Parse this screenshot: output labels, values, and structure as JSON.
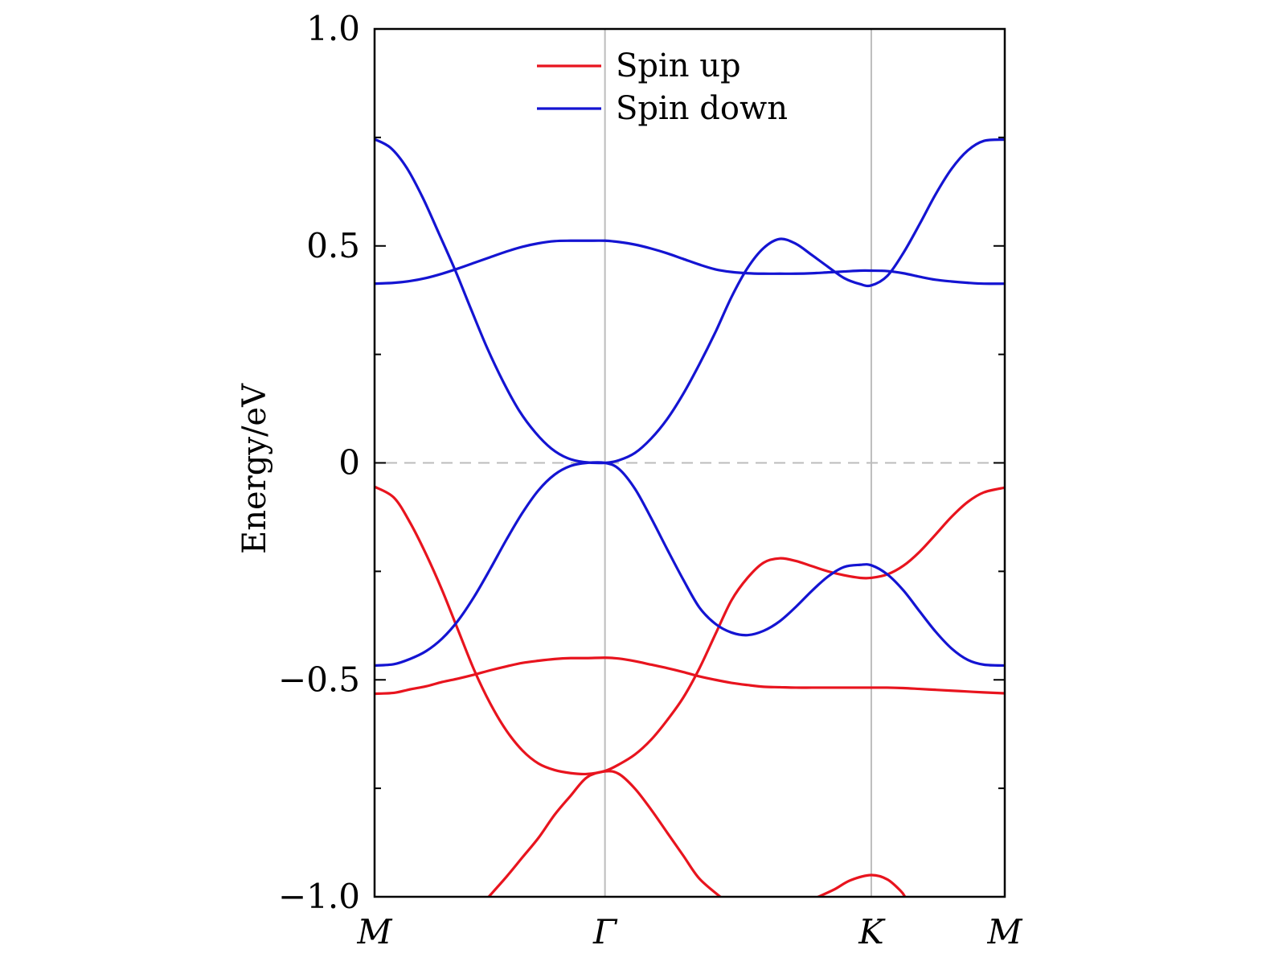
{
  "chart_data": {
    "type": "line",
    "title": "",
    "xlabel": "",
    "ylabel": "Energy/eV",
    "ylim": [
      -1.0,
      1.0
    ],
    "xlim": [
      0,
      1
    ],
    "y_ticks": [
      {
        "value": 1.0,
        "label": "1.0"
      },
      {
        "value": 0.5,
        "label": "0.5"
      },
      {
        "value": 0,
        "label": "0"
      },
      {
        "value": -0.5,
        "label": "−0.5"
      },
      {
        "value": -1.0,
        "label": "−1.0"
      }
    ],
    "y_minor_ticks": [
      0.75,
      0.25,
      -0.25,
      -0.75
    ],
    "k_points": [
      {
        "label": "M",
        "x": 0
      },
      {
        "label": "Γ",
        "x": 0.3656
      },
      {
        "label": "K",
        "x": 0.7882
      },
      {
        "label": "M",
        "x": 1
      }
    ],
    "fermi_level": 0,
    "grid": false,
    "legend": {
      "position": "top-center"
    },
    "colors": {
      "spin_up": "#e8141e",
      "spin_down": "#1414d2",
      "vlines": "#bcbcbc",
      "fermi": "#bcbcbc"
    },
    "series": [
      {
        "name": "Spin up",
        "color": "#e8141e",
        "bands": [
          [
            [
              0,
              -0.055
            ],
            [
              0.0306,
              -0.08
            ],
            [
              0.0561,
              -0.137
            ],
            [
              0.0816,
              -0.21
            ],
            [
              0.1071,
              -0.293
            ],
            [
              0.1327,
              -0.386
            ],
            [
              0.1582,
              -0.478
            ],
            [
              0.1837,
              -0.555
            ],
            [
              0.2092,
              -0.617
            ],
            [
              0.2347,
              -0.663
            ],
            [
              0.2602,
              -0.693
            ],
            [
              0.2857,
              -0.708
            ],
            [
              0.3112,
              -0.715
            ],
            [
              0.3367,
              -0.717
            ],
            [
              0.3656,
              -0.71
            ],
            [
              0.3878,
              -0.695
            ],
            [
              0.4133,
              -0.672
            ],
            [
              0.4388,
              -0.638
            ],
            [
              0.4643,
              -0.593
            ],
            [
              0.4898,
              -0.541
            ],
            [
              0.5153,
              -0.474
            ],
            [
              0.5408,
              -0.395
            ],
            [
              0.5663,
              -0.317
            ],
            [
              0.5918,
              -0.265
            ],
            [
              0.6173,
              -0.23
            ],
            [
              0.6429,
              -0.22
            ],
            [
              0.6684,
              -0.226
            ],
            [
              0.6939,
              -0.238
            ],
            [
              0.7194,
              -0.25
            ],
            [
              0.7449,
              -0.259
            ],
            [
              0.7704,
              -0.265
            ],
            [
              0.7882,
              -0.265
            ],
            [
              0.8137,
              -0.257
            ],
            [
              0.8392,
              -0.237
            ],
            [
              0.8648,
              -0.205
            ],
            [
              0.8903,
              -0.165
            ],
            [
              0.9158,
              -0.124
            ],
            [
              0.9413,
              -0.09
            ],
            [
              0.9668,
              -0.068
            ],
            [
              1.0,
              -0.057
            ]
          ],
          [
            [
              0,
              -0.532
            ],
            [
              0.0306,
              -0.53
            ],
            [
              0.0561,
              -0.522
            ],
            [
              0.0816,
              -0.515
            ],
            [
              0.1071,
              -0.505
            ],
            [
              0.1327,
              -0.497
            ],
            [
              0.1582,
              -0.488
            ],
            [
              0.1837,
              -0.478
            ],
            [
              0.2092,
              -0.469
            ],
            [
              0.2347,
              -0.461
            ],
            [
              0.2602,
              -0.456
            ],
            [
              0.2857,
              -0.452
            ],
            [
              0.3112,
              -0.45
            ],
            [
              0.3367,
              -0.45
            ],
            [
              0.3656,
              -0.449
            ],
            [
              0.3878,
              -0.451
            ],
            [
              0.4133,
              -0.457
            ],
            [
              0.4388,
              -0.465
            ],
            [
              0.4643,
              -0.473
            ],
            [
              0.4898,
              -0.482
            ],
            [
              0.5153,
              -0.492
            ],
            [
              0.5408,
              -0.5
            ],
            [
              0.5663,
              -0.507
            ],
            [
              0.5918,
              -0.512
            ],
            [
              0.6173,
              -0.516
            ],
            [
              0.6429,
              -0.517
            ],
            [
              0.6684,
              -0.518
            ],
            [
              0.6939,
              -0.518
            ],
            [
              0.7194,
              -0.518
            ],
            [
              0.7449,
              -0.518
            ],
            [
              0.7704,
              -0.518
            ],
            [
              0.7882,
              -0.518
            ],
            [
              0.8137,
              -0.518
            ],
            [
              0.8392,
              -0.519
            ],
            [
              0.8648,
              -0.521
            ],
            [
              0.8903,
              -0.523
            ],
            [
              0.9158,
              -0.525
            ],
            [
              0.9413,
              -0.527
            ],
            [
              0.9668,
              -0.529
            ],
            [
              1.0,
              -0.531
            ]
          ],
          [
            [
              0.1811,
              -1.0
            ],
            [
              0.2092,
              -0.954
            ],
            [
              0.2347,
              -0.909
            ],
            [
              0.2602,
              -0.864
            ],
            [
              0.2857,
              -0.811
            ],
            [
              0.3112,
              -0.767
            ],
            [
              0.3367,
              -0.725
            ],
            [
              0.3656,
              -0.711
            ],
            [
              0.3878,
              -0.717
            ],
            [
              0.4133,
              -0.751
            ],
            [
              0.4388,
              -0.799
            ],
            [
              0.4643,
              -0.852
            ],
            [
              0.4898,
              -0.905
            ],
            [
              0.5153,
              -0.958
            ],
            [
              0.5485,
              -1.0
            ]
          ],
          [
            [
              0.7041,
              -1.0
            ],
            [
              0.7296,
              -0.983
            ],
            [
              0.7551,
              -0.962
            ],
            [
              0.7882,
              -0.95
            ],
            [
              0.8137,
              -0.96
            ],
            [
              0.8352,
              -0.987
            ],
            [
              0.8416,
              -1.0
            ]
          ]
        ]
      },
      {
        "name": "Spin down",
        "color": "#1414d2",
        "bands": [
          [
            [
              0,
              0.746
            ],
            [
              0.0255,
              0.726
            ],
            [
              0.051,
              0.68
            ],
            [
              0.0765,
              0.611
            ],
            [
              0.102,
              0.529
            ],
            [
              0.1276,
              0.445
            ],
            [
              0.1531,
              0.354
            ],
            [
              0.1786,
              0.265
            ],
            [
              0.2041,
              0.187
            ],
            [
              0.2296,
              0.12
            ],
            [
              0.2551,
              0.07
            ],
            [
              0.2806,
              0.033
            ],
            [
              0.3061,
              0.011
            ],
            [
              0.3316,
              0.002
            ],
            [
              0.3656,
              0.0
            ],
            [
              0.3878,
              0.006
            ],
            [
              0.4133,
              0.023
            ],
            [
              0.4388,
              0.056
            ],
            [
              0.4643,
              0.101
            ],
            [
              0.4898,
              0.159
            ],
            [
              0.5153,
              0.227
            ],
            [
              0.5408,
              0.301
            ],
            [
              0.5663,
              0.382
            ],
            [
              0.5918,
              0.449
            ],
            [
              0.6173,
              0.495
            ],
            [
              0.6429,
              0.516
            ],
            [
              0.6684,
              0.505
            ],
            [
              0.6939,
              0.479
            ],
            [
              0.7194,
              0.452
            ],
            [
              0.7449,
              0.426
            ],
            [
              0.7704,
              0.412
            ],
            [
              0.7882,
              0.409
            ],
            [
              0.8137,
              0.431
            ],
            [
              0.8392,
              0.484
            ],
            [
              0.8648,
              0.55
            ],
            [
              0.8903,
              0.619
            ],
            [
              0.9158,
              0.678
            ],
            [
              0.9413,
              0.72
            ],
            [
              0.9668,
              0.742
            ],
            [
              1.0,
              0.745
            ]
          ],
          [
            [
              0,
              0.413
            ],
            [
              0.0306,
              0.415
            ],
            [
              0.0561,
              0.419
            ],
            [
              0.0816,
              0.426
            ],
            [
              0.1071,
              0.436
            ],
            [
              0.1327,
              0.448
            ],
            [
              0.1582,
              0.461
            ],
            [
              0.1837,
              0.474
            ],
            [
              0.2092,
              0.487
            ],
            [
              0.2347,
              0.498
            ],
            [
              0.2602,
              0.506
            ],
            [
              0.2857,
              0.511
            ],
            [
              0.3112,
              0.512
            ],
            [
              0.3367,
              0.512
            ],
            [
              0.3656,
              0.512
            ],
            [
              0.3878,
              0.509
            ],
            [
              0.4133,
              0.503
            ],
            [
              0.4388,
              0.494
            ],
            [
              0.4643,
              0.483
            ],
            [
              0.4898,
              0.47
            ],
            [
              0.5153,
              0.457
            ],
            [
              0.5408,
              0.446
            ],
            [
              0.5663,
              0.44
            ],
            [
              0.5918,
              0.437
            ],
            [
              0.6173,
              0.436
            ],
            [
              0.6429,
              0.436
            ],
            [
              0.6684,
              0.436
            ],
            [
              0.6939,
              0.437
            ],
            [
              0.7194,
              0.439
            ],
            [
              0.7449,
              0.441
            ],
            [
              0.7704,
              0.443
            ],
            [
              0.7882,
              0.443
            ],
            [
              0.8137,
              0.442
            ],
            [
              0.8392,
              0.437
            ],
            [
              0.8648,
              0.429
            ],
            [
              0.8903,
              0.422
            ],
            [
              0.9158,
              0.418
            ],
            [
              0.9413,
              0.415
            ],
            [
              0.9668,
              0.413
            ],
            [
              1.0,
              0.413
            ]
          ],
          [
            [
              0,
              -0.467
            ],
            [
              0.0306,
              -0.464
            ],
            [
              0.0561,
              -0.452
            ],
            [
              0.0816,
              -0.434
            ],
            [
              0.1071,
              -0.405
            ],
            [
              0.1327,
              -0.363
            ],
            [
              0.1582,
              -0.308
            ],
            [
              0.1837,
              -0.244
            ],
            [
              0.2092,
              -0.177
            ],
            [
              0.2347,
              -0.115
            ],
            [
              0.2602,
              -0.063
            ],
            [
              0.2857,
              -0.027
            ],
            [
              0.3112,
              -0.007
            ],
            [
              0.3367,
              0.0
            ],
            [
              0.3656,
              0.0
            ],
            [
              0.3878,
              -0.014
            ],
            [
              0.4133,
              -0.06
            ],
            [
              0.4388,
              -0.127
            ],
            [
              0.4643,
              -0.199
            ],
            [
              0.4898,
              -0.269
            ],
            [
              0.5153,
              -0.333
            ],
            [
              0.5408,
              -0.371
            ],
            [
              0.5663,
              -0.391
            ],
            [
              0.5918,
              -0.397
            ],
            [
              0.6173,
              -0.387
            ],
            [
              0.6429,
              -0.365
            ],
            [
              0.6684,
              -0.332
            ],
            [
              0.6939,
              -0.295
            ],
            [
              0.7194,
              -0.262
            ],
            [
              0.7449,
              -0.24
            ],
            [
              0.7704,
              -0.235
            ],
            [
              0.7882,
              -0.236
            ],
            [
              0.8137,
              -0.257
            ],
            [
              0.8392,
              -0.294
            ],
            [
              0.8648,
              -0.342
            ],
            [
              0.8903,
              -0.389
            ],
            [
              0.9158,
              -0.428
            ],
            [
              0.9413,
              -0.454
            ],
            [
              0.9668,
              -0.465
            ],
            [
              1.0,
              -0.467
            ]
          ]
        ]
      }
    ]
  }
}
